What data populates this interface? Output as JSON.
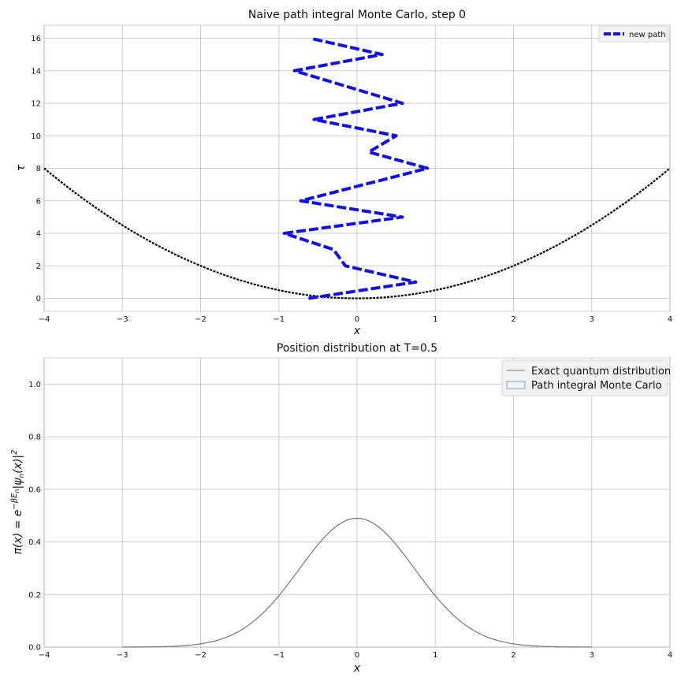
{
  "chart_data": [
    {
      "type": "line",
      "title": "Naive path integral Monte Carlo, step 0",
      "xlabel": "x",
      "ylabel": "τ",
      "xlim": [
        -4,
        4
      ],
      "ylim": [
        -0.8,
        16.8
      ],
      "xticks": [
        "−4",
        "−3",
        "−2",
        "−1",
        "0",
        "1",
        "2",
        "3",
        "4"
      ],
      "yticks": [
        "0",
        "2",
        "4",
        "6",
        "8",
        "10",
        "12",
        "14",
        "16"
      ],
      "grid": true,
      "legend": {
        "position": "top-right",
        "entries": [
          "new path"
        ]
      },
      "series": [
        {
          "name": "new path",
          "style": "dashed",
          "color": "#1010ee",
          "x": [
            -0.62,
            0.75,
            -0.15,
            -0.3,
            -0.93,
            0.58,
            -0.72,
            0.9,
            0.15,
            0.5,
            -0.55,
            0.58,
            -0.8,
            0.32,
            -0.6
          ],
          "y": [
            0,
            1,
            2,
            3,
            4,
            5,
            6,
            8,
            9,
            10,
            11,
            12,
            14,
            15,
            16
          ]
        },
        {
          "name": "",
          "style": "dotted",
          "color": "#000000",
          "function": "tau = x^2 / 2",
          "x": [
            -4,
            -3,
            -2,
            -1,
            0,
            1,
            2,
            3,
            4
          ],
          "y": [
            8,
            4.5,
            2,
            0.5,
            0,
            0.5,
            2,
            4.5,
            8
          ]
        }
      ]
    },
    {
      "type": "line",
      "title": "Position distribution at T=0.5",
      "xlabel": "x",
      "ylabel": "π(x) = e^{−βE_n}|ψ_n(x)|²",
      "ylabel_parts": {
        "lhs": "π(x) = e",
        "exp": "−βE",
        "exp_sub": "n",
        "mid": "|ψ",
        "mid_sub": "n",
        "end": "(x)|",
        "power": "2"
      },
      "xlim": [
        -4,
        4
      ],
      "ylim": [
        0,
        1.1
      ],
      "xticks": [
        "−4",
        "−3",
        "−2",
        "−1",
        "0",
        "1",
        "2",
        "3",
        "4"
      ],
      "yticks": [
        "0.0",
        "0.2",
        "0.4",
        "0.6",
        "0.8",
        "1.0"
      ],
      "grid": true,
      "legend": {
        "position": "top-right",
        "entries": [
          "Exact quantum distribution",
          "Path integral Monte Carlo"
        ]
      },
      "series": [
        {
          "name": "Exact quantum distribution",
          "color": "#777777",
          "function": "0.49 * exp(-0.92 * x^2)",
          "x_range": [
            -3,
            3
          ],
          "peak": 0.49
        },
        {
          "name": "Path integral Monte Carlo",
          "type": "histogram",
          "color": "#6baed6",
          "values": []
        }
      ]
    }
  ]
}
